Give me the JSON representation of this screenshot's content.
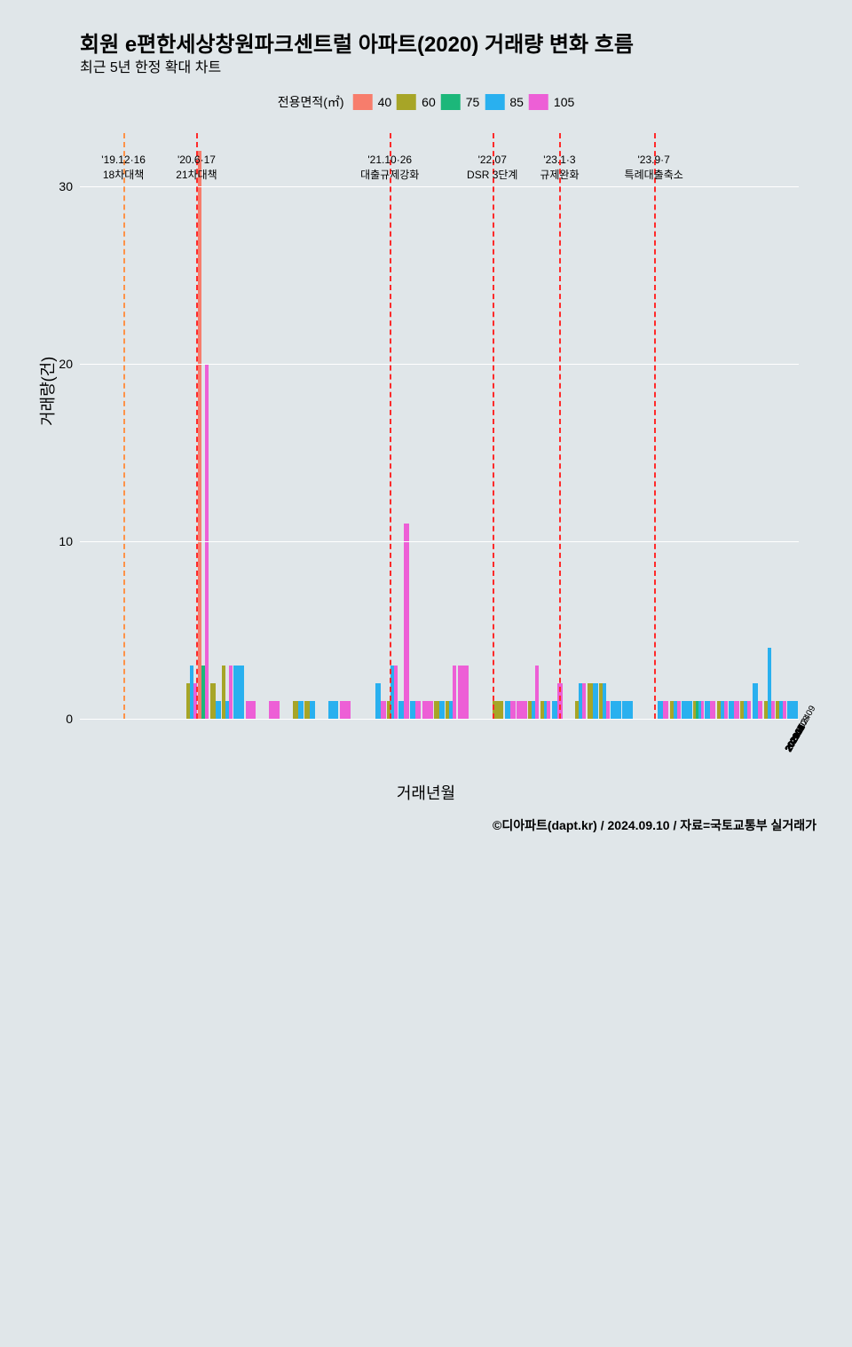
{
  "title": "회원 e편한세상창원파크센트럴 아파트(2020) 거래량 변화 흐름",
  "subtitle": "최근 5년 한정 확대 차트",
  "legend_title": "전용면적(㎡)",
  "legend_items": [
    {
      "label": "40",
      "color": "#f77d6c"
    },
    {
      "label": "60",
      "color": "#a7a527"
    },
    {
      "label": "75",
      "color": "#1cb77a"
    },
    {
      "label": "85",
      "color": "#29b0ef"
    },
    {
      "label": "105",
      "color": "#ed5fd6"
    }
  ],
  "ylabel": "거래량(건)",
  "xlabel": "거래년월",
  "credit": "©디아파트(dapt.kr) / 2024.09.10 / 자료=국토교통부 실거래가",
  "chart": {
    "ylim": [
      0,
      33
    ],
    "yticks": [
      0,
      10,
      20,
      30
    ],
    "background": "#e0e6e9",
    "grid_color": "#ffffff",
    "categories": [
      "201909",
      "201910",
      "201911",
      "201912",
      "202001",
      "202002",
      "202003",
      "202004",
      "202005",
      "202006",
      "202007",
      "202008",
      "202009",
      "202010",
      "202011",
      "202012",
      "202101",
      "202102",
      "202103",
      "202104",
      "202105",
      "202106",
      "202107",
      "202108",
      "202109",
      "202110",
      "202111",
      "202112",
      "202201",
      "202202",
      "202203",
      "202204",
      "202205",
      "202206",
      "202207",
      "202208",
      "202209",
      "202210",
      "202211",
      "202212",
      "202301",
      "202302",
      "202303",
      "202304",
      "202305",
      "202306",
      "202307",
      "202308",
      "202309",
      "202310",
      "202311",
      "202312",
      "202401",
      "202402",
      "202403",
      "202404",
      "202405",
      "202406",
      "202407",
      "202408",
      "202409"
    ],
    "series_colors": {
      "40": "#f77d6c",
      "60": "#a7a527",
      "75": "#1cb77a",
      "85": "#29b0ef",
      "105": "#ed5fd6"
    },
    "events": [
      {
        "idx": 3.2,
        "label1": "'19.12·16",
        "label2": "18차대책",
        "color": "#ff9248"
      },
      {
        "idx": 9.4,
        "label1": "'20.6·17",
        "label2": "21차대책",
        "color": "#ff2a2a"
      },
      {
        "idx": 25.8,
        "label1": "'21.10·26",
        "label2": "대출규제강화",
        "color": "#ff2a2a"
      },
      {
        "idx": 34.5,
        "label1": "'22.07",
        "label2": "DSR 3단계",
        "color": "#ff2a2a"
      },
      {
        "idx": 40.2,
        "label1": "'23.1·3",
        "label2": "규제완화",
        "color": "#ff2a2a"
      },
      {
        "idx": 48.2,
        "label1": "'23.9·7",
        "label2": "특례대출축소",
        "color": "#ff2a2a"
      }
    ],
    "bars": {
      "202006": {
        "60": 2,
        "85": 3,
        "105": 2
      },
      "202007": {
        "40": 32,
        "75": 3,
        "105": 20
      },
      "202008": {
        "60": 2,
        "85": 1
      },
      "202009": {
        "60": 3,
        "85": 1,
        "105": 3
      },
      "202010": {
        "85": 3
      },
      "202011": {
        "105": 1
      },
      "202012": {},
      "202101": {
        "105": 1
      },
      "202102": {},
      "202103": {
        "60": 1,
        "85": 1
      },
      "202104": {
        "60": 1,
        "85": 1
      },
      "202105": {},
      "202106": {
        "85": 1
      },
      "202107": {
        "105": 1
      },
      "202108": {},
      "202109": {},
      "202110": {
        "85": 2,
        "105": 1
      },
      "202111": {
        "60": 1,
        "85": 3,
        "105": 3
      },
      "202112": {
        "85": 1,
        "105": 11
      },
      "202201": {
        "85": 1,
        "105": 1
      },
      "202202": {
        "105": 1
      },
      "202203": {
        "60": 1,
        "85": 1
      },
      "202204": {
        "60": 1,
        "85": 1,
        "105": 3
      },
      "202205": {
        "105": 3
      },
      "202206": {},
      "202207": {},
      "202208": {
        "60": 1
      },
      "202209": {
        "85": 1,
        "105": 1
      },
      "202210": {
        "105": 1
      },
      "202211": {
        "60": 1,
        "85": 1,
        "105": 3
      },
      "202212": {
        "60": 1,
        "85": 1,
        "105": 1
      },
      "202301": {
        "85": 1,
        "105": 2
      },
      "202302": {},
      "202303": {
        "60": 1,
        "85": 2,
        "105": 2
      },
      "202304": {
        "60": 2,
        "85": 2
      },
      "202305": {
        "60": 2,
        "85": 2,
        "105": 1
      },
      "202306": {
        "85": 1
      },
      "202307": {
        "85": 1
      },
      "202308": {},
      "202309": {},
      "202310": {
        "85": 1,
        "105": 1
      },
      "202311": {
        "60": 1,
        "85": 1,
        "105": 1
      },
      "202312": {
        "85": 1
      },
      "202401": {
        "60": 1,
        "75": 1,
        "85": 1,
        "105": 1
      },
      "202402": {
        "85": 1,
        "105": 1
      },
      "202403": {
        "60": 1,
        "85": 1,
        "105": 1
      },
      "202404": {
        "85": 1,
        "105": 1
      },
      "202405": {
        "60": 1,
        "85": 1,
        "105": 1
      },
      "202406": {
        "85": 2,
        "105": 1
      },
      "202407": {
        "60": 1,
        "85": 4,
        "105": 1
      },
      "202408": {
        "60": 1,
        "85": 1,
        "105": 1
      },
      "202409": {
        "85": 1
      }
    }
  }
}
